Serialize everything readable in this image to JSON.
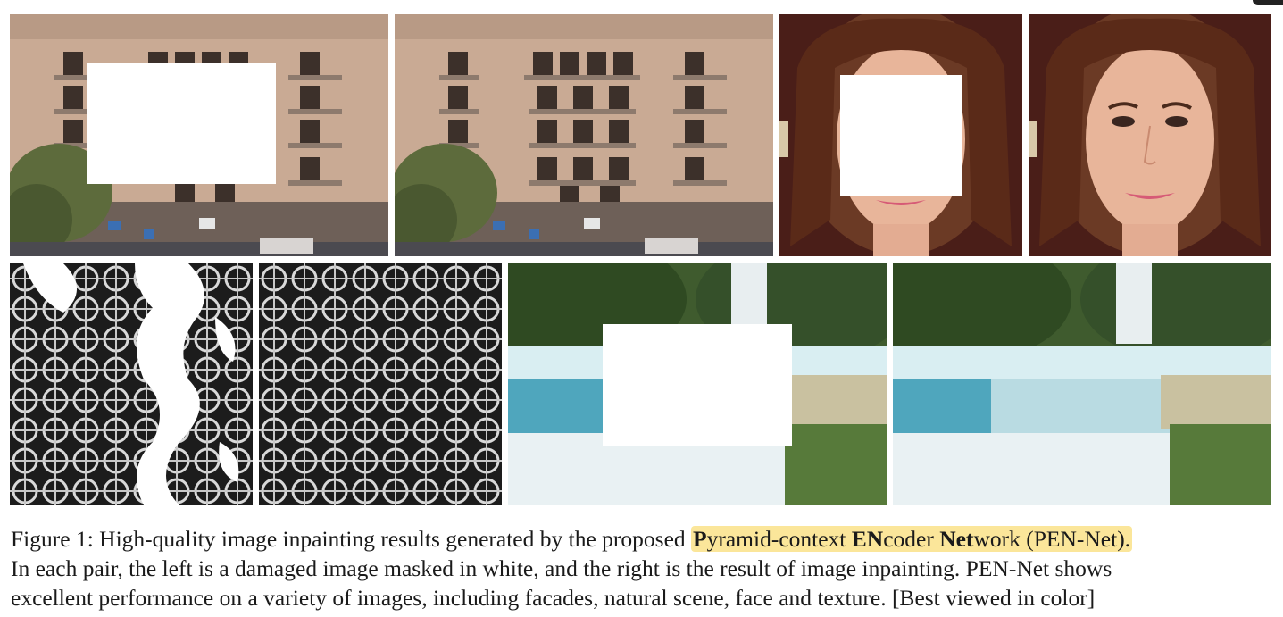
{
  "figure": {
    "label": "Figure 1:",
    "line1_prefix": "High-quality image inpainting results generated by the proposed",
    "name_parts": [
      {
        "text": "P",
        "bold": true
      },
      {
        "text": "yramid-context ",
        "bold": false
      },
      {
        "text": "EN",
        "bold": true
      },
      {
        "text": "coder ",
        "bold": false
      },
      {
        "text": "Net",
        "bold": true
      },
      {
        "text": "work (PEN-Net).",
        "bold": false
      }
    ],
    "line2": "In each pair, the left is a damaged image masked in white, and the right is the result of image inpainting.  PEN-Net shows",
    "line3": "excellent performance on a variety of images, including facades, natural scene, face and texture. [Best viewed in color]",
    "highlight_color": "#fbe69a"
  }
}
